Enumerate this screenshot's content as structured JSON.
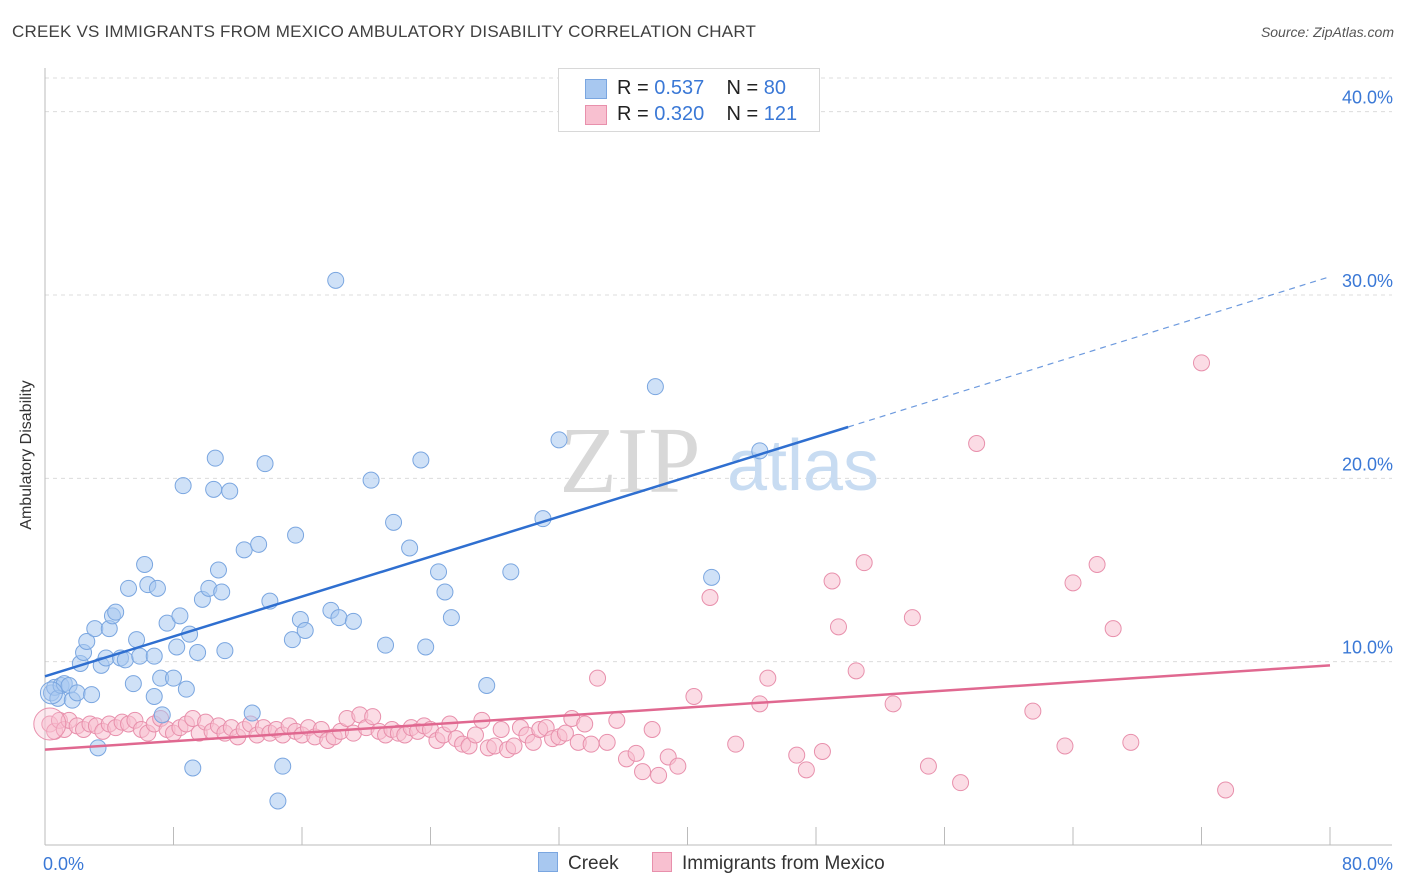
{
  "title": "CREEK VS IMMIGRANTS FROM MEXICO AMBULATORY DISABILITY CORRELATION CHART",
  "source": "Source: ZipAtlas.com",
  "watermark": {
    "zip": "ZIP",
    "atlas": "atlas"
  },
  "legend": [
    {
      "r_label": "R =",
      "r_value": "0.537",
      "n_label": "N =",
      "n_value": "80",
      "color": "#a8c8f0",
      "border": "#7aa6e0"
    },
    {
      "r_label": "R =",
      "r_value": "0.320",
      "n_label": "N =",
      "n_value": "121",
      "color": "#f8c0d0",
      "border": "#e890ac"
    }
  ],
  "bottom_legend": [
    {
      "label": "Creek",
      "color": "#a8c8f0",
      "border": "#7aa6e0"
    },
    {
      "label": "Immigrants from Mexico",
      "color": "#f8c0d0",
      "border": "#e890ac"
    }
  ],
  "chart_data": {
    "type": "scatter",
    "ylabel": "Ambulatory Disability",
    "xlim": [
      0,
      80
    ],
    "ylim": [
      0,
      42
    ],
    "x_tick_labels": [
      "0.0%",
      "80.0%"
    ],
    "y_ticks": [
      10,
      20,
      30,
      40
    ],
    "y_tick_labels": [
      "10.0%",
      "20.0%",
      "30.0%",
      "40.0%"
    ],
    "grid": true,
    "series": [
      {
        "name": "Creek",
        "color": "#7aa6e0",
        "fill": "#a8c8f0",
        "trend": {
          "x0": 0,
          "y0": 9.2,
          "x1": 50,
          "y1": 22.8,
          "dash_to_x": 80,
          "dash_to_y": 31.0,
          "color": "#2f6fd0"
        },
        "points": [
          [
            0.4,
            8.3
          ],
          [
            0.6,
            8.6
          ],
          [
            0.8,
            8.0
          ],
          [
            1.0,
            8.7
          ],
          [
            1.2,
            8.8
          ],
          [
            1.5,
            8.7
          ],
          [
            1.7,
            7.9
          ],
          [
            2.0,
            8.3
          ],
          [
            2.2,
            9.9
          ],
          [
            2.4,
            10.5
          ],
          [
            2.6,
            11.1
          ],
          [
            2.9,
            8.2
          ],
          [
            3.1,
            11.8
          ],
          [
            3.3,
            5.3
          ],
          [
            3.5,
            9.8
          ],
          [
            3.8,
            10.2
          ],
          [
            4.0,
            11.8
          ],
          [
            4.2,
            12.5
          ],
          [
            4.4,
            12.7
          ],
          [
            4.7,
            10.2
          ],
          [
            5.0,
            10.1
          ],
          [
            5.2,
            14.0
          ],
          [
            5.5,
            8.8
          ],
          [
            5.7,
            11.2
          ],
          [
            5.9,
            10.3
          ],
          [
            6.2,
            15.3
          ],
          [
            6.4,
            14.2
          ],
          [
            6.8,
            8.1
          ],
          [
            7.0,
            14.0
          ],
          [
            7.2,
            9.1
          ],
          [
            7.3,
            7.1
          ],
          [
            7.6,
            12.1
          ],
          [
            8.0,
            9.1
          ],
          [
            8.2,
            10.8
          ],
          [
            8.4,
            12.5
          ],
          [
            8.6,
            19.6
          ],
          [
            8.8,
            8.5
          ],
          [
            9.0,
            11.5
          ],
          [
            9.2,
            4.2
          ],
          [
            9.8,
            13.4
          ],
          [
            10.2,
            14.0
          ],
          [
            10.5,
            19.4
          ],
          [
            10.6,
            21.1
          ],
          [
            10.8,
            15.0
          ],
          [
            11.2,
            10.6
          ],
          [
            11.5,
            19.3
          ],
          [
            12.4,
            16.1
          ],
          [
            12.9,
            7.2
          ],
          [
            13.3,
            16.4
          ],
          [
            13.7,
            20.8
          ],
          [
            14.0,
            13.3
          ],
          [
            14.5,
            2.4
          ],
          [
            14.8,
            4.3
          ],
          [
            15.4,
            11.2
          ],
          [
            15.6,
            16.9
          ],
          [
            15.9,
            12.3
          ],
          [
            16.2,
            11.7
          ],
          [
            17.8,
            12.8
          ],
          [
            18.1,
            30.8
          ],
          [
            18.3,
            12.4
          ],
          [
            19.2,
            12.2
          ],
          [
            20.3,
            19.9
          ],
          [
            21.2,
            10.9
          ],
          [
            21.7,
            17.6
          ],
          [
            22.7,
            16.2
          ],
          [
            23.4,
            21.0
          ],
          [
            23.7,
            10.8
          ],
          [
            24.5,
            14.9
          ],
          [
            24.9,
            13.8
          ],
          [
            25.3,
            12.4
          ],
          [
            27.5,
            8.7
          ],
          [
            29.0,
            14.9
          ],
          [
            31.0,
            17.8
          ],
          [
            32.0,
            22.1
          ],
          [
            38.0,
            25.0
          ],
          [
            41.5,
            14.6
          ],
          [
            44.5,
            21.5
          ],
          [
            11.0,
            13.8
          ],
          [
            6.8,
            10.3
          ],
          [
            9.5,
            10.5
          ]
        ]
      },
      {
        "name": "Immigrants from Mexico",
        "color": "#e890ac",
        "fill": "#f8c0d0",
        "trend": {
          "x0": 0,
          "y0": 5.2,
          "x1": 80,
          "y1": 9.8,
          "color": "#e06890"
        },
        "points": [
          [
            0.3,
            6.6
          ],
          [
            0.6,
            6.2
          ],
          [
            0.9,
            6.8
          ],
          [
            1.2,
            6.3
          ],
          [
            1.5,
            6.8
          ],
          [
            2.0,
            6.5
          ],
          [
            2.4,
            6.3
          ],
          [
            2.8,
            6.6
          ],
          [
            3.2,
            6.5
          ],
          [
            3.6,
            6.2
          ],
          [
            4.0,
            6.6
          ],
          [
            4.4,
            6.4
          ],
          [
            4.8,
            6.7
          ],
          [
            5.2,
            6.6
          ],
          [
            5.6,
            6.8
          ],
          [
            6.0,
            6.3
          ],
          [
            6.4,
            6.1
          ],
          [
            6.8,
            6.6
          ],
          [
            7.2,
            6.9
          ],
          [
            7.6,
            6.3
          ],
          [
            8.0,
            6.1
          ],
          [
            8.4,
            6.4
          ],
          [
            8.8,
            6.6
          ],
          [
            9.2,
            6.9
          ],
          [
            9.6,
            6.1
          ],
          [
            10.0,
            6.7
          ],
          [
            10.4,
            6.2
          ],
          [
            10.8,
            6.5
          ],
          [
            11.2,
            6.1
          ],
          [
            11.6,
            6.4
          ],
          [
            12.0,
            5.9
          ],
          [
            12.4,
            6.3
          ],
          [
            12.8,
            6.6
          ],
          [
            13.2,
            6.0
          ],
          [
            13.6,
            6.4
          ],
          [
            14.0,
            6.1
          ],
          [
            14.4,
            6.3
          ],
          [
            14.8,
            6.0
          ],
          [
            15.2,
            6.5
          ],
          [
            15.6,
            6.2
          ],
          [
            16.0,
            6.0
          ],
          [
            16.4,
            6.4
          ],
          [
            16.8,
            5.9
          ],
          [
            17.2,
            6.3
          ],
          [
            17.6,
            5.7
          ],
          [
            18.0,
            5.9
          ],
          [
            18.4,
            6.2
          ],
          [
            18.8,
            6.9
          ],
          [
            19.2,
            6.1
          ],
          [
            19.6,
            7.1
          ],
          [
            20.0,
            6.4
          ],
          [
            20.4,
            7.0
          ],
          [
            20.8,
            6.2
          ],
          [
            21.2,
            6.0
          ],
          [
            21.6,
            6.3
          ],
          [
            22.0,
            6.1
          ],
          [
            22.4,
            6.0
          ],
          [
            22.8,
            6.4
          ],
          [
            23.2,
            6.2
          ],
          [
            23.6,
            6.5
          ],
          [
            24.0,
            6.3
          ],
          [
            24.4,
            5.7
          ],
          [
            24.8,
            6.0
          ],
          [
            25.2,
            6.6
          ],
          [
            25.6,
            5.8
          ],
          [
            26.0,
            5.5
          ],
          [
            26.4,
            5.4
          ],
          [
            26.8,
            6.0
          ],
          [
            27.2,
            6.8
          ],
          [
            27.6,
            5.3
          ],
          [
            28.0,
            5.4
          ],
          [
            28.4,
            6.3
          ],
          [
            28.8,
            5.2
          ],
          [
            29.2,
            5.4
          ],
          [
            29.6,
            6.4
          ],
          [
            30.0,
            6.0
          ],
          [
            30.4,
            5.6
          ],
          [
            30.8,
            6.3
          ],
          [
            31.2,
            6.4
          ],
          [
            31.6,
            5.8
          ],
          [
            32.0,
            5.9
          ],
          [
            32.4,
            6.1
          ],
          [
            32.8,
            6.9
          ],
          [
            33.2,
            5.6
          ],
          [
            33.6,
            6.6
          ],
          [
            34.0,
            5.5
          ],
          [
            34.4,
            9.1
          ],
          [
            35.0,
            5.6
          ],
          [
            35.6,
            6.8
          ],
          [
            36.2,
            4.7
          ],
          [
            36.8,
            5.0
          ],
          [
            37.2,
            4.0
          ],
          [
            37.8,
            6.3
          ],
          [
            38.2,
            3.8
          ],
          [
            38.8,
            4.8
          ],
          [
            39.4,
            4.3
          ],
          [
            40.4,
            8.1
          ],
          [
            41.4,
            13.5
          ],
          [
            43.0,
            5.5
          ],
          [
            44.5,
            7.7
          ],
          [
            45.0,
            9.1
          ],
          [
            46.8,
            4.9
          ],
          [
            47.4,
            4.1
          ],
          [
            48.4,
            5.1
          ],
          [
            49.0,
            14.4
          ],
          [
            49.4,
            11.9
          ],
          [
            50.5,
            9.5
          ],
          [
            51.0,
            15.4
          ],
          [
            52.8,
            7.7
          ],
          [
            54.0,
            12.4
          ],
          [
            55.0,
            4.3
          ],
          [
            57.0,
            3.4
          ],
          [
            58.0,
            21.9
          ],
          [
            61.5,
            7.3
          ],
          [
            63.5,
            5.4
          ],
          [
            64.0,
            14.3
          ],
          [
            65.5,
            15.3
          ],
          [
            66.5,
            11.8
          ],
          [
            67.6,
            5.6
          ],
          [
            72.0,
            26.3
          ],
          [
            73.5,
            3.0
          ]
        ]
      }
    ]
  }
}
